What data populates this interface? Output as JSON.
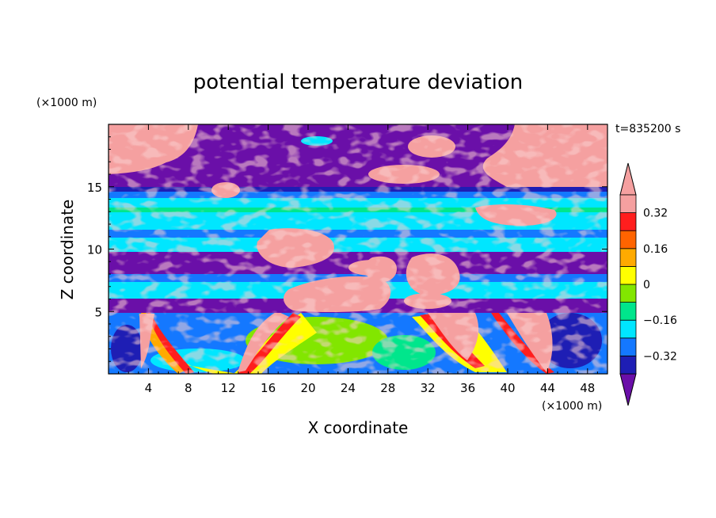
{
  "chart_data": {
    "type": "heatmap",
    "title": "potential temperature deviation",
    "xlabel": "X coordinate",
    "ylabel": "Z coordinate",
    "x_unit": "(×1000 m)",
    "y_unit": "(×1000 m)",
    "time_label": "t=835200 s",
    "xlim": [
      0,
      50
    ],
    "ylim": [
      0,
      20
    ],
    "x_ticks": [
      4,
      8,
      12,
      16,
      20,
      24,
      28,
      32,
      36,
      40,
      44,
      48
    ],
    "y_ticks": [
      5,
      10,
      15
    ],
    "colorbar": {
      "levels": [
        -0.4,
        -0.32,
        -0.24,
        -0.16,
        -0.08,
        0,
        0.08,
        0.16,
        0.24,
        0.32,
        0.4
      ],
      "labels": [
        "0.32",
        "0.16",
        "0",
        "−0.16",
        "−0.32"
      ],
      "label_values": [
        0.32,
        0.16,
        0,
        -0.16,
        -0.32
      ],
      "colors": [
        "#6a0fa8",
        "#1e1eb4",
        "#1478ff",
        "#00e6ff",
        "#00e68c",
        "#82e600",
        "#ffff00",
        "#ffaa00",
        "#ff6400",
        "#ff1e1e",
        "#f5a0a0"
      ]
    }
  }
}
